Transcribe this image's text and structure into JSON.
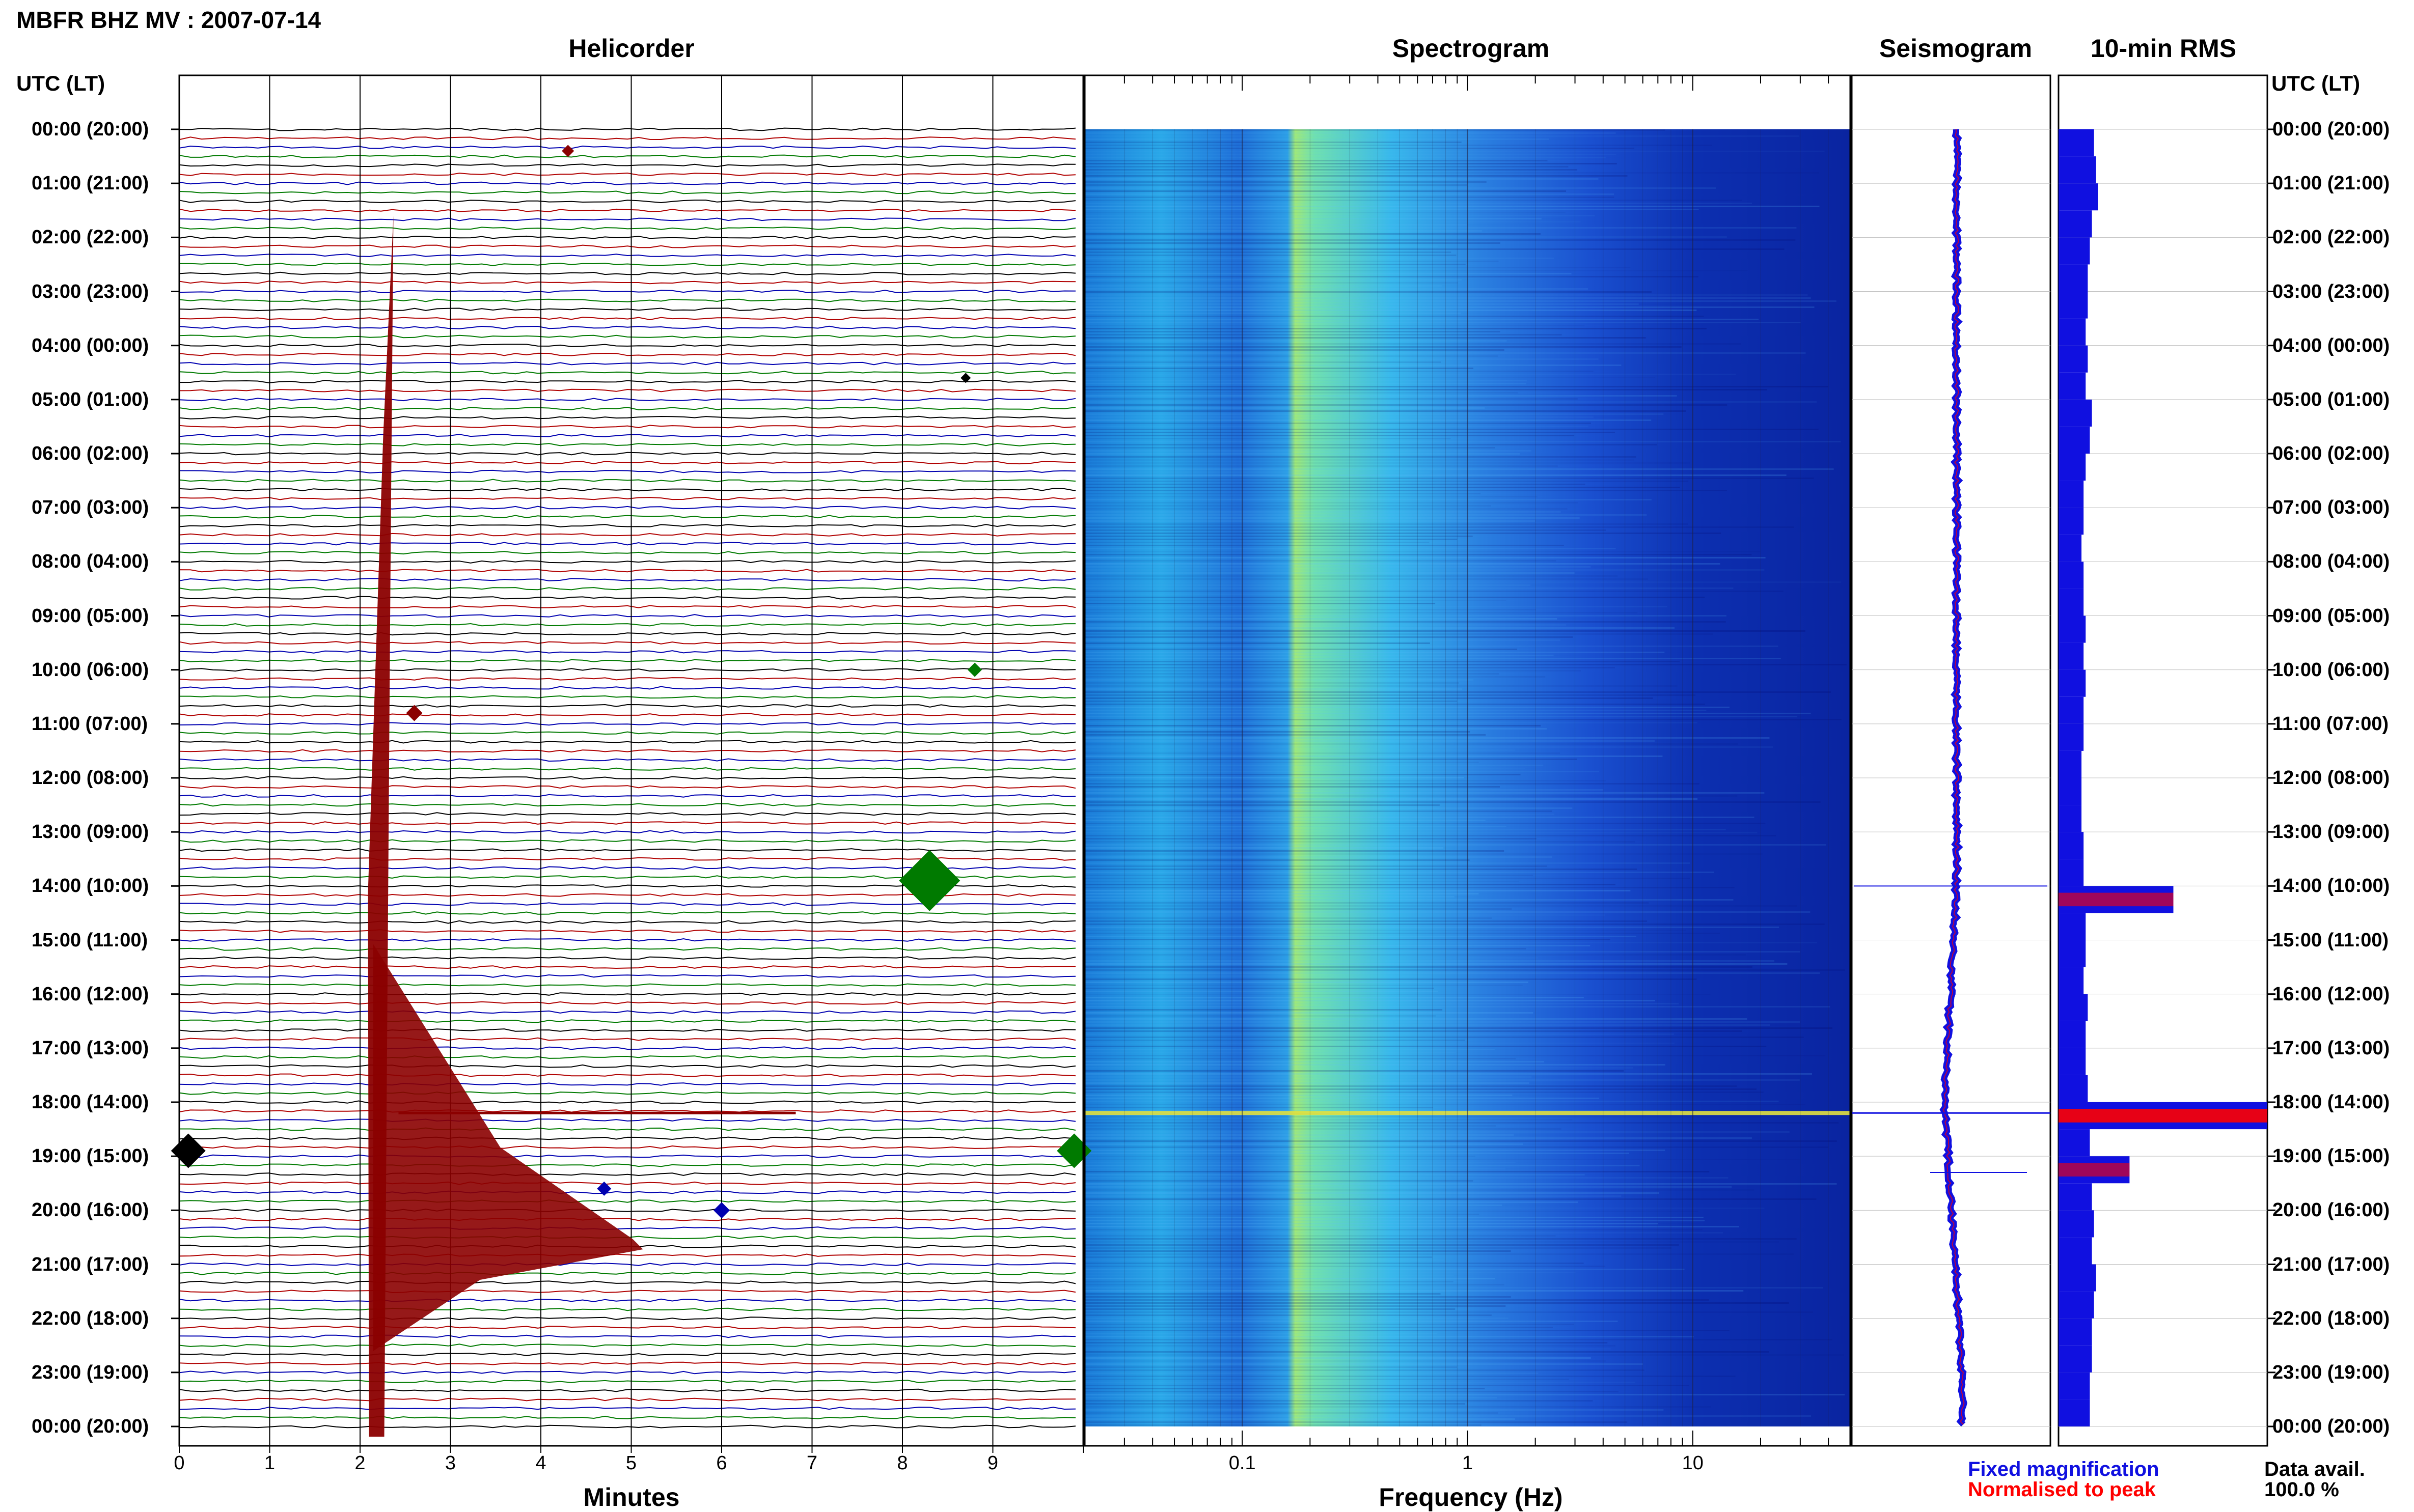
{
  "header": {
    "title": "MBFR BHZ MV : 2007-07-14",
    "utc_label_left": "UTC (LT)",
    "utc_label_right": "UTC (LT)"
  },
  "panels": {
    "helicorder": "Helicorder",
    "spectrogram": "Spectrogram",
    "seismogram": "Seismogram",
    "rms": "10-min RMS"
  },
  "axes": {
    "minutes_label": "Minutes",
    "frequency_label": "Frequency (Hz)",
    "minute_ticks": [
      "0",
      "1",
      "2",
      "3",
      "4",
      "5",
      "6",
      "7",
      "8",
      "9"
    ],
    "freq_ticks": [
      "0.1",
      "1",
      "10"
    ]
  },
  "time_labels": [
    "00:00 (20:00)",
    "01:00 (21:00)",
    "02:00 (22:00)",
    "03:00 (23:00)",
    "04:00 (00:00)",
    "05:00 (01:00)",
    "06:00 (02:00)",
    "07:00 (03:00)",
    "08:00 (04:00)",
    "09:00 (05:00)",
    "10:00 (06:00)",
    "11:00 (07:00)",
    "12:00 (08:00)",
    "13:00 (09:00)",
    "14:00 (10:00)",
    "15:00 (11:00)",
    "16:00 (12:00)",
    "17:00 (13:00)",
    "18:00 (14:00)",
    "19:00 (15:00)",
    "20:00 (16:00)",
    "21:00 (17:00)",
    "22:00 (18:00)",
    "23:00 (19:00)",
    "00:00 (20:00)"
  ],
  "legend": {
    "fixed": "Fixed magnification",
    "normalised": "Normalised to peak",
    "fixed_color": "#1010e0",
    "normalised_color": "#ff0000"
  },
  "data_avail": {
    "label": "Data avail.",
    "value": "100.0 %"
  },
  "colors": {
    "trace_cycle": [
      "#000000",
      "#b00000",
      "#0000b0",
      "#007a00"
    ],
    "event": "#8b0000",
    "spectro_bg": "#0a2ea8"
  },
  "chart_data": [
    {
      "type": "line",
      "title": "Helicorder",
      "xlabel": "Minutes",
      "x_range": [
        0,
        10
      ],
      "rows_per_hour": 6,
      "events": [
        {
          "time_utc": "18:00",
          "minute": 2.2,
          "description": "large event, waveform spanning many lines"
        },
        {
          "time_utc": "14:00",
          "minute": 8.3,
          "description": "moderate event"
        },
        {
          "time_utc": "19:00",
          "minute": 0.0,
          "description": "event"
        },
        {
          "time_utc": "19:00",
          "minute": 9.9,
          "description": "event"
        }
      ]
    },
    {
      "type": "heatmap",
      "title": "Spectrogram",
      "xlabel": "Frequency (Hz)",
      "x_scale": "log",
      "x_ticks": [
        0.1,
        1,
        10
      ],
      "x_range": [
        0.02,
        50
      ]
    },
    {
      "type": "line",
      "title": "Seismogram",
      "series": [
        {
          "name": "Fixed magnification"
        },
        {
          "name": "Normalised to peak"
        }
      ]
    },
    {
      "type": "bar",
      "title": "10-min RMS",
      "orientation": "horizontal",
      "x_max": 1,
      "hours": [
        0,
        0.5,
        1,
        1.5,
        2,
        2.5,
        3,
        3.5,
        4,
        4.5,
        5,
        5.5,
        6,
        6.5,
        7,
        7.5,
        8,
        8.5,
        9,
        9.5,
        10,
        10.5,
        11,
        11.5,
        12,
        12.5,
        13,
        13.5,
        14,
        14.5,
        15,
        15.5,
        16,
        16.5,
        17,
        17.5,
        18,
        18.5,
        19,
        19.5,
        20,
        20.5,
        21,
        21.5,
        22,
        22.5,
        23,
        23.5
      ],
      "values": [
        0.17,
        0.18,
        0.19,
        0.16,
        0.15,
        0.14,
        0.14,
        0.13,
        0.14,
        0.13,
        0.16,
        0.15,
        0.13,
        0.12,
        0.12,
        0.11,
        0.12,
        0.12,
        0.13,
        0.12,
        0.13,
        0.12,
        0.12,
        0.11,
        0.11,
        0.11,
        0.12,
        0.12,
        0.55,
        0.13,
        0.13,
        0.12,
        0.14,
        0.13,
        0.13,
        0.14,
        1.0,
        0.15,
        0.34,
        0.16,
        0.17,
        0.16,
        0.18,
        0.17,
        0.16,
        0.16,
        0.15,
        0.15
      ]
    }
  ]
}
